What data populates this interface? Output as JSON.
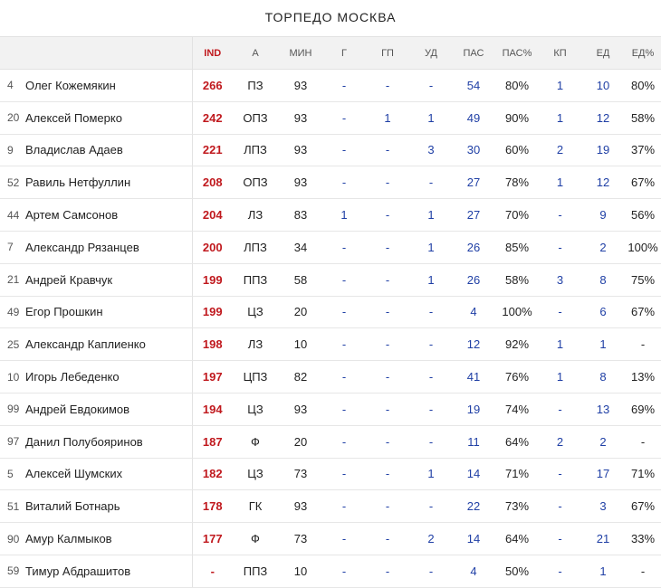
{
  "team": "ТОРПЕДО МОСКВА",
  "headers": {
    "ind": "IND",
    "a": "А",
    "min": "МИН",
    "g": "Г",
    "gp": "ГП",
    "ud": "УД",
    "pas": "ПАС",
    "pas_pct": "ПАС%",
    "kp": "КП",
    "ed": "ЕД",
    "ed_pct": "ЕД%"
  },
  "colors": {
    "accent": "#c0191e",
    "link": "#1f3fa5",
    "header_bg": "#f2f2f2"
  },
  "players": [
    {
      "num": "4",
      "name": "Олег Кожемякин",
      "ind": "266",
      "a": "ПЗ",
      "min": "93",
      "g": "-",
      "gp": "-",
      "ud": "-",
      "pas": "54",
      "pas_pct": "80%",
      "kp": "1",
      "ed": "10",
      "ed_pct": "80%"
    },
    {
      "num": "20",
      "name": "Алексей Померко",
      "ind": "242",
      "a": "ОПЗ",
      "min": "93",
      "g": "-",
      "gp": "1",
      "ud": "1",
      "pas": "49",
      "pas_pct": "90%",
      "kp": "1",
      "ed": "12",
      "ed_pct": "58%"
    },
    {
      "num": "9",
      "name": "Владислав Адаев",
      "ind": "221",
      "a": "ЛПЗ",
      "min": "93",
      "g": "-",
      "gp": "-",
      "ud": "3",
      "pas": "30",
      "pas_pct": "60%",
      "kp": "2",
      "ed": "19",
      "ed_pct": "37%"
    },
    {
      "num": "52",
      "name": "Равиль Нетфуллин",
      "ind": "208",
      "a": "ОПЗ",
      "min": "93",
      "g": "-",
      "gp": "-",
      "ud": "-",
      "pas": "27",
      "pas_pct": "78%",
      "kp": "1",
      "ed": "12",
      "ed_pct": "67%"
    },
    {
      "num": "44",
      "name": "Артем Самсонов",
      "ind": "204",
      "a": "ЛЗ",
      "min": "83",
      "g": "1",
      "gp": "-",
      "ud": "1",
      "pas": "27",
      "pas_pct": "70%",
      "kp": "-",
      "ed": "9",
      "ed_pct": "56%"
    },
    {
      "num": "7",
      "name": "Александр Рязанцев",
      "ind": "200",
      "a": "ЛПЗ",
      "min": "34",
      "g": "-",
      "gp": "-",
      "ud": "1",
      "pas": "26",
      "pas_pct": "85%",
      "kp": "-",
      "ed": "2",
      "ed_pct": "100%"
    },
    {
      "num": "21",
      "name": "Андрей Кравчук",
      "ind": "199",
      "a": "ППЗ",
      "min": "58",
      "g": "-",
      "gp": "-",
      "ud": "1",
      "pas": "26",
      "pas_pct": "58%",
      "kp": "3",
      "ed": "8",
      "ed_pct": "75%"
    },
    {
      "num": "49",
      "name": "Егор Прошкин",
      "ind": "199",
      "a": "ЦЗ",
      "min": "20",
      "g": "-",
      "gp": "-",
      "ud": "-",
      "pas": "4",
      "pas_pct": "100%",
      "kp": "-",
      "ed": "6",
      "ed_pct": "67%"
    },
    {
      "num": "25",
      "name": "Александр Каплиенко",
      "ind": "198",
      "a": "ЛЗ",
      "min": "10",
      "g": "-",
      "gp": "-",
      "ud": "-",
      "pas": "12",
      "pas_pct": "92%",
      "kp": "1",
      "ed": "1",
      "ed_pct": "-"
    },
    {
      "num": "10",
      "name": "Игорь Лебеденко",
      "ind": "197",
      "a": "ЦПЗ",
      "min": "82",
      "g": "-",
      "gp": "-",
      "ud": "-",
      "pas": "41",
      "pas_pct": "76%",
      "kp": "1",
      "ed": "8",
      "ed_pct": "13%"
    },
    {
      "num": "99",
      "name": "Андрей Евдокимов",
      "ind": "194",
      "a": "ЦЗ",
      "min": "93",
      "g": "-",
      "gp": "-",
      "ud": "-",
      "pas": "19",
      "pas_pct": "74%",
      "kp": "-",
      "ed": "13",
      "ed_pct": "69%"
    },
    {
      "num": "97",
      "name": "Данил Полубояринов",
      "ind": "187",
      "a": "Ф",
      "min": "20",
      "g": "-",
      "gp": "-",
      "ud": "-",
      "pas": "11",
      "pas_pct": "64%",
      "kp": "2",
      "ed": "2",
      "ed_pct": "-"
    },
    {
      "num": "5",
      "name": "Алексей Шумских",
      "ind": "182",
      "a": "ЦЗ",
      "min": "73",
      "g": "-",
      "gp": "-",
      "ud": "1",
      "pas": "14",
      "pas_pct": "71%",
      "kp": "-",
      "ed": "17",
      "ed_pct": "71%"
    },
    {
      "num": "51",
      "name": "Виталий Ботнарь",
      "ind": "178",
      "a": "ГК",
      "min": "93",
      "g": "-",
      "gp": "-",
      "ud": "-",
      "pas": "22",
      "pas_pct": "73%",
      "kp": "-",
      "ed": "3",
      "ed_pct": "67%"
    },
    {
      "num": "90",
      "name": "Амур Калмыков",
      "ind": "177",
      "a": "Ф",
      "min": "73",
      "g": "-",
      "gp": "-",
      "ud": "2",
      "pas": "14",
      "pas_pct": "64%",
      "kp": "-",
      "ed": "21",
      "ed_pct": "33%"
    },
    {
      "num": "59",
      "name": "Тимур Абдрашитов",
      "ind": "-",
      "a": "ППЗ",
      "min": "10",
      "g": "-",
      "gp": "-",
      "ud": "-",
      "pas": "4",
      "pas_pct": "50%",
      "kp": "-",
      "ed": "1",
      "ed_pct": "-"
    }
  ]
}
